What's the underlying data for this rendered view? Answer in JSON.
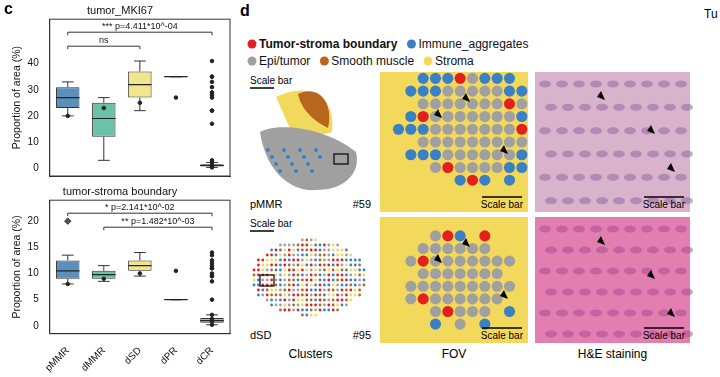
{
  "chart_data": [
    {
      "type": "box",
      "title": "tumor_MKI67",
      "ylabel": "Proportion of area (%)",
      "categories": [
        "pMMR",
        "dMMR",
        "dSD",
        "dPR",
        "dCR"
      ],
      "colors": [
        "#5b8fbd",
        "#6cc2a8",
        "#f3e58a",
        "#a8a8a8",
        "#e9a3a3"
      ],
      "boxes": [
        {
          "min": 20,
          "q1": 23,
          "median": 27,
          "q3": 31,
          "max": 33,
          "points": [
            20,
            23,
            25,
            27,
            29,
            31,
            33
          ],
          "outliers": []
        },
        {
          "min": 3,
          "q1": 12,
          "median": 19,
          "q3": 25,
          "max": 27,
          "points": [
            3,
            17,
            22,
            27
          ],
          "outliers": []
        },
        {
          "min": 22,
          "q1": 27,
          "median": 32,
          "q3": 37,
          "max": 41,
          "points": [
            22,
            28,
            35,
            41
          ],
          "outliers": []
        },
        {
          "min": 35,
          "q1": 35,
          "median": 35,
          "q3": 35,
          "max": 35,
          "points": [
            35
          ],
          "outliers": []
        },
        {
          "min": 0.3,
          "q1": 0.8,
          "median": 1,
          "q3": 1.5,
          "max": 2.2,
          "points": [
            0.3,
            0.8,
            1.2,
            2.2
          ],
          "outliers": []
        }
      ],
      "annotations": [
        {
          "text": "*** p=4.411*10^-04",
          "from": "pMMR",
          "to": "dCR"
        },
        {
          "text": "ns",
          "from": "pMMR",
          "to": "dSD"
        }
      ],
      "ylim": [
        -3,
        57
      ],
      "yticks": [
        0,
        10,
        20,
        30,
        40
      ],
      "grid": false,
      "tick_labels": "y"
    },
    {
      "type": "box",
      "title": "tumor-stroma boundary",
      "ylabel": "Proportion of area (%)",
      "categories": [
        "pMMR",
        "dMMR",
        "dSD",
        "dPR",
        "dCR"
      ],
      "colors": [
        "#5b8fbd",
        "#6cc2a8",
        "#f3e58a",
        "#a8a8a8",
        "#e9a3a3"
      ],
      "boxes": [
        {
          "min": 8,
          "q1": 9,
          "median": 10.5,
          "q3": 12.5,
          "max": 13.5,
          "points": [
            8,
            9,
            10,
            10.5,
            11,
            12.5,
            13.5
          ],
          "outliers": [
            20
          ]
        },
        {
          "min": 8.5,
          "q1": 9,
          "median": 9.8,
          "q3": 10.5,
          "max": 11.5,
          "points": [
            8.5,
            9.5,
            10,
            11.5
          ],
          "outliers": []
        },
        {
          "min": 9.5,
          "q1": 10.5,
          "median": 11.5,
          "q3": 12.5,
          "max": 14,
          "points": [
            9.5,
            11,
            12,
            14
          ],
          "outliers": []
        },
        {
          "min": 5,
          "q1": 5,
          "median": 5,
          "q3": 5,
          "max": 5,
          "points": [
            5
          ],
          "outliers": []
        },
        {
          "min": 0.2,
          "q1": 0.6,
          "median": 1,
          "q3": 1.5,
          "max": 2.1,
          "points": [
            0.2,
            0.9,
            1.3,
            2.1
          ],
          "outliers": []
        }
      ],
      "annotations": [
        {
          "text": "* p=2.141*10^-02",
          "from": "pMMR",
          "to": "dCR"
        },
        {
          "text": "** p=1.482*10^-03",
          "from": "dMMR",
          "to": "dCR"
        }
      ],
      "ylim": [
        -1.5,
        24
      ],
      "yticks": [
        0,
        5,
        10,
        15,
        20
      ],
      "grid": false
    }
  ],
  "panel_c_label": "c",
  "panel_d": {
    "label": "d",
    "legend": [
      {
        "name": "Tumor-stroma boundary",
        "color": "#e3201c"
      },
      {
        "name": "Immune_aggregates",
        "color": "#3b7fc4"
      },
      {
        "name": "Epi/tumor",
        "color": "#a0a0a0"
      },
      {
        "name": "Smooth muscle",
        "color": "#b8651e"
      },
      {
        "name": "Stroma",
        "color": "#f2d95c"
      }
    ],
    "rows": [
      {
        "group": "pMMR",
        "sample": "#59"
      },
      {
        "group": "dSD",
        "sample": "#95"
      }
    ],
    "columns": [
      "Clusters",
      "FOV",
      "H&E staining"
    ],
    "scale_bar": "Scale bar",
    "edge_text": "Tu"
  }
}
